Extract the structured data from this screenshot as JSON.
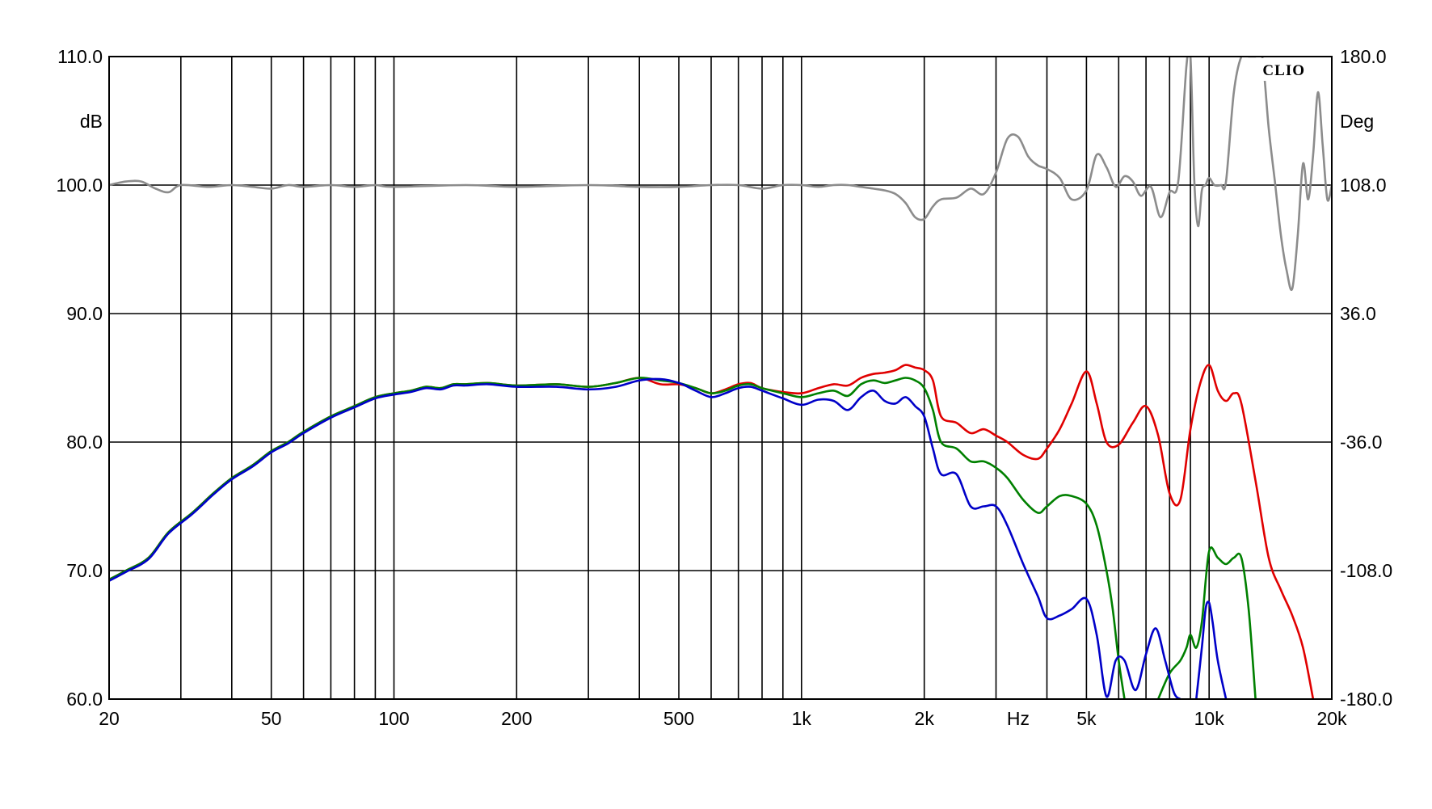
{
  "chart_data": {
    "type": "line",
    "logo": "CLIO",
    "x_scale": "log",
    "xlim": [
      20,
      20000
    ],
    "ylim": [
      60,
      110
    ],
    "y2lim": [
      -180,
      180
    ],
    "grid": true,
    "legend": "none",
    "left_unit": "dB",
    "right_unit": "Deg",
    "x_unit": "Hz",
    "x_ticks": [
      {
        "value": 20,
        "label": "20"
      },
      {
        "value": 50,
        "label": "50"
      },
      {
        "value": 100,
        "label": "100"
      },
      {
        "value": 200,
        "label": "200"
      },
      {
        "value": 500,
        "label": "500"
      },
      {
        "value": 1000,
        "label": "1k"
      },
      {
        "value": 2000,
        "label": "2k"
      },
      {
        "value": 5000,
        "label": "5k"
      },
      {
        "value": 10000,
        "label": "10k"
      },
      {
        "value": 20000,
        "label": "20k"
      }
    ],
    "x_unit_position": 3400,
    "x_minor_gridlines": [
      30,
      40,
      60,
      70,
      80,
      90,
      300,
      400,
      600,
      700,
      800,
      900,
      3000,
      4000,
      6000,
      7000,
      8000,
      9000
    ],
    "y_ticks": [
      {
        "value": 60,
        "label": "60.0"
      },
      {
        "value": 70,
        "label": "70.0"
      },
      {
        "value": 80,
        "label": "80.0"
      },
      {
        "value": 90,
        "label": "90.0"
      },
      {
        "value": 100,
        "label": "100.0"
      },
      {
        "value": 110,
        "label": "110.0"
      }
    ],
    "y2_ticks": [
      {
        "value": -180,
        "label": "-180.0"
      },
      {
        "value": -108,
        "label": "-108.0"
      },
      {
        "value": -36,
        "label": "-36.0"
      },
      {
        "value": 36,
        "label": "36.0"
      },
      {
        "value": 108,
        "label": "108.0"
      },
      {
        "value": 180,
        "label": "180.0"
      }
    ],
    "series": [
      {
        "color": "#e00000",
        "axis": "left",
        "x": [
          20,
          22,
          25,
          28,
          32,
          36,
          40,
          45,
          50,
          55,
          60,
          70,
          80,
          90,
          100,
          110,
          120,
          130,
          140,
          150,
          170,
          200,
          250,
          300,
          350,
          400,
          450,
          500,
          550,
          600,
          650,
          700,
          750,
          800,
          900,
          1000,
          1100,
          1200,
          1300,
          1400,
          1500,
          1600,
          1700,
          1800,
          1900,
          2000,
          2100,
          2200,
          2400,
          2600,
          2800,
          3000,
          3200,
          3500,
          3800,
          4000,
          4300,
          4600,
          5000,
          5300,
          5600,
          6000,
          6500,
          7000,
          7500,
          8000,
          8500,
          9000,
          9500,
          10000,
          10500,
          11000,
          11500,
          12000,
          13000,
          14000,
          15000,
          16000,
          17000,
          18000
        ],
        "y": [
          69.3,
          70.0,
          71.0,
          73.0,
          74.5,
          76.0,
          77.2,
          78.2,
          79.3,
          80.0,
          80.8,
          82.0,
          82.8,
          83.5,
          83.8,
          84.0,
          84.3,
          84.2,
          84.5,
          84.5,
          84.6,
          84.4,
          84.5,
          84.3,
          84.6,
          85.0,
          84.5,
          84.5,
          84.2,
          83.8,
          84.1,
          84.5,
          84.6,
          84.2,
          83.9,
          83.8,
          84.2,
          84.5,
          84.4,
          85.0,
          85.3,
          85.4,
          85.6,
          86.0,
          85.8,
          85.6,
          84.8,
          82.0,
          81.5,
          80.7,
          81.0,
          80.5,
          80.0,
          79.0,
          78.7,
          79.5,
          81.0,
          83.0,
          85.5,
          83.0,
          80.0,
          79.8,
          81.5,
          82.8,
          80.5,
          76.0,
          75.5,
          81.0,
          84.5,
          86.0,
          84.0,
          83.2,
          83.8,
          83.0,
          77.0,
          71.0,
          68.5,
          66.5,
          64.0,
          60.0
        ]
      },
      {
        "color": "#008000",
        "axis": "left",
        "x": [
          20,
          22,
          25,
          28,
          32,
          36,
          40,
          45,
          50,
          55,
          60,
          70,
          80,
          90,
          100,
          110,
          120,
          130,
          140,
          150,
          170,
          200,
          250,
          300,
          350,
          400,
          450,
          500,
          550,
          600,
          650,
          700,
          750,
          800,
          900,
          1000,
          1100,
          1200,
          1300,
          1400,
          1500,
          1600,
          1700,
          1800,
          1900,
          2000,
          2100,
          2200,
          2400,
          2600,
          2800,
          3000,
          3200,
          3500,
          3800,
          4000,
          4300,
          4600,
          5000,
          5300,
          5600,
          5800,
          6000,
          6200
        ],
        "y": [
          69.3,
          70.0,
          71.0,
          73.0,
          74.5,
          76.0,
          77.2,
          78.2,
          79.3,
          80.0,
          80.8,
          82.0,
          82.8,
          83.5,
          83.8,
          84.0,
          84.3,
          84.2,
          84.5,
          84.5,
          84.6,
          84.4,
          84.5,
          84.3,
          84.6,
          85.0,
          84.8,
          84.6,
          84.2,
          83.8,
          84.0,
          84.4,
          84.5,
          84.2,
          83.8,
          83.5,
          83.8,
          84.0,
          83.6,
          84.5,
          84.8,
          84.6,
          84.8,
          85.0,
          84.8,
          84.2,
          82.5,
          80.0,
          79.5,
          78.5,
          78.5,
          78.0,
          77.2,
          75.5,
          74.5,
          75.0,
          75.8,
          75.8,
          75.2,
          73.5,
          70.0,
          67.0,
          63.0,
          60.0
        ]
      },
      {
        "color": "#008000",
        "axis": "left",
        "x": [
          7500,
          8000,
          8500,
          8800,
          9000,
          9300,
          9600,
          10000,
          10500,
          11000,
          11500,
          12000,
          12500,
          13000
        ],
        "y": [
          60.0,
          62.0,
          63.0,
          64.0,
          65.0,
          64.0,
          66.0,
          71.5,
          71.0,
          70.5,
          71.0,
          71.0,
          67.0,
          60.0
        ]
      },
      {
        "color": "#0000c8",
        "axis": "left",
        "x": [
          20,
          22,
          25,
          28,
          32,
          36,
          40,
          45,
          50,
          55,
          60,
          70,
          80,
          90,
          100,
          110,
          120,
          130,
          140,
          150,
          170,
          200,
          250,
          300,
          350,
          400,
          450,
          500,
          550,
          600,
          650,
          700,
          750,
          800,
          900,
          1000,
          1100,
          1200,
          1300,
          1400,
          1500,
          1600,
          1700,
          1800,
          1900,
          2000,
          2100,
          2200,
          2400,
          2600,
          2800,
          3000,
          3200,
          3500,
          3800,
          4000,
          4300,
          4600,
          5000,
          5300,
          5600,
          5900,
          6200,
          6600,
          7000,
          7400,
          7800,
          8200,
          8500
        ],
        "y": [
          69.2,
          69.9,
          70.9,
          72.9,
          74.4,
          75.9,
          77.1,
          78.1,
          79.2,
          79.9,
          80.7,
          81.9,
          82.7,
          83.4,
          83.7,
          83.9,
          84.2,
          84.1,
          84.4,
          84.4,
          84.5,
          84.3,
          84.3,
          84.1,
          84.3,
          84.8,
          84.9,
          84.6,
          84.0,
          83.5,
          83.8,
          84.2,
          84.3,
          84.0,
          83.4,
          82.9,
          83.3,
          83.2,
          82.5,
          83.5,
          84.0,
          83.2,
          83.0,
          83.5,
          82.8,
          82.0,
          79.5,
          77.5,
          77.5,
          75.0,
          75.0,
          75.0,
          73.5,
          70.5,
          68.0,
          66.3,
          66.5,
          67.0,
          67.8,
          65.0,
          60.2,
          63.0,
          63.0,
          60.7,
          63.5,
          65.5,
          63.0,
          60.5,
          60.0
        ]
      },
      {
        "color": "#0000c8",
        "axis": "left",
        "x": [
          9300,
          9600,
          9800,
          10000,
          10200,
          10500,
          11000
        ],
        "y": [
          60.0,
          64.0,
          67.0,
          67.5,
          66.0,
          63.0,
          60.0
        ]
      },
      {
        "color": "#8c8c8c",
        "axis": "right",
        "x": [
          20,
          22,
          24,
          26,
          28,
          30,
          35,
          40,
          45,
          50,
          55,
          60,
          70,
          80,
          90,
          100,
          150,
          200,
          300,
          400,
          500,
          600,
          700,
          800,
          900,
          1000,
          1100,
          1200,
          1300,
          1400,
          1500,
          1600,
          1700,
          1800,
          1900,
          2000,
          2100,
          2200,
          2400,
          2600,
          2800,
          3000,
          3200,
          3400,
          3600,
          3800,
          4000,
          4300,
          4600,
          5000,
          5300,
          5600,
          5900,
          6200,
          6500,
          6800,
          7200,
          7600,
          8000,
          8400,
          8800,
          9000,
          9200,
          9400,
          9600,
          9800,
          10000,
          10300,
          10700,
          11000,
          11500,
          12000,
          12500,
          13000,
          13500,
          14000,
          14500,
          15000,
          15500,
          16000,
          16500,
          17000,
          17500,
          18000,
          18500,
          19000,
          19500,
          20000
        ],
        "y": [
          108,
          110,
          110,
          106,
          104,
          108,
          107,
          108,
          107,
          106,
          108,
          107,
          108,
          107,
          108,
          107,
          108,
          107,
          108,
          107,
          107,
          108,
          108,
          106,
          108,
          108,
          107,
          108,
          108,
          107,
          106,
          105,
          103,
          98,
          90,
          89,
          96,
          100,
          101,
          106,
          103,
          115,
          134,
          135,
          124,
          119,
          117,
          112,
          100,
          105,
          125,
          118,
          107,
          113,
          110,
          102,
          107,
          90,
          104,
          110,
          175,
          180,
          110,
          85,
          105,
          108,
          112,
          108,
          108,
          110,
          160,
          180,
          180,
          180,
          180,
          140,
          110,
          80,
          60,
          50,
          80,
          120,
          100,
          125,
          160,
          130,
          100,
          108
        ]
      }
    ]
  }
}
